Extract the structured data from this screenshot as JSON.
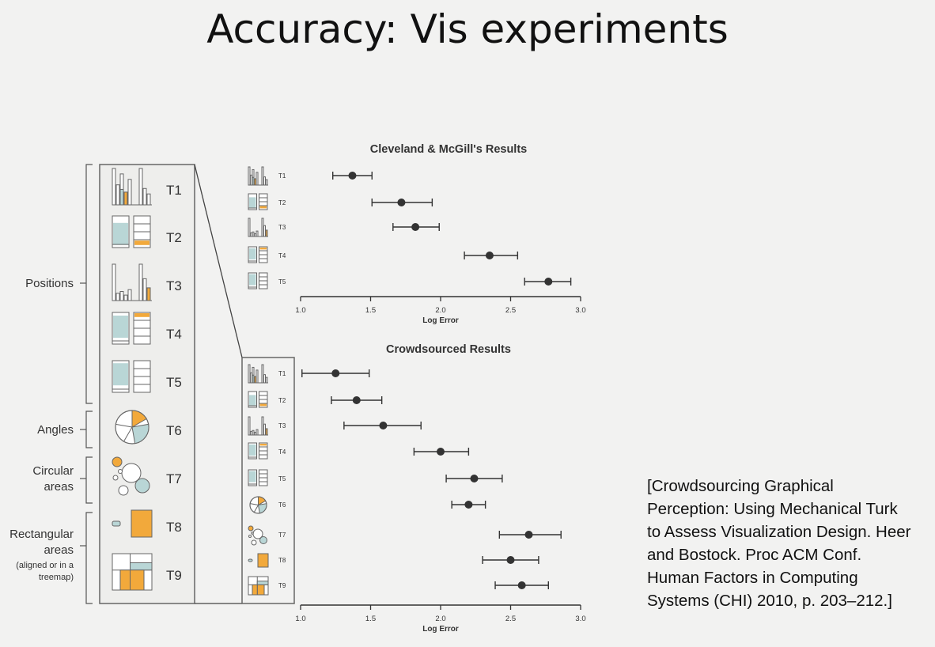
{
  "slide": {
    "title": "Accuracy: Vis experiments",
    "citation_lines": [
      "[Crowdsourcing Graphical",
      "Perception: Using Mechanical Turk",
      "to Assess Visualization Design. Heer",
      "and Bostock. Proc ACM Conf.",
      "Human Factors in Computing",
      "Systems (CHI) 2010, p. 203–212.]"
    ]
  },
  "tasks": {
    "groups": [
      {
        "label_lines": [
          "Positions"
        ],
        "tasks": [
          "T1",
          "T2",
          "T3",
          "T4",
          "T5"
        ]
      },
      {
        "label_lines": [
          "Angles"
        ],
        "tasks": [
          "T6"
        ]
      },
      {
        "label_lines": [
          "Circular",
          "areas"
        ],
        "tasks": [
          "T7"
        ]
      },
      {
        "label_lines": [
          "Rectangular",
          "areas",
          "(aligned or in a",
          "treemap)"
        ],
        "tasks": [
          "T8",
          "T9"
        ]
      }
    ],
    "labels": [
      "T1",
      "T2",
      "T3",
      "T4",
      "T5",
      "T6",
      "T7",
      "T8",
      "T9"
    ]
  },
  "colors": {
    "highlight": "#f2a93b",
    "teal": "#b9d6d6",
    "ink": "#333333",
    "frame": "#666666"
  },
  "chart_data": [
    {
      "type": "scatter",
      "title": "Cleveland & McGill's  Results",
      "xlabel": "Log Error",
      "xlim": [
        1.0,
        3.0
      ],
      "xticks": [
        "1.0",
        "1.5",
        "2.0",
        "2.5",
        "3.0"
      ],
      "categories": [
        "T1",
        "T2",
        "T3",
        "T4",
        "T5"
      ],
      "values": [
        1.37,
        1.72,
        1.82,
        2.35,
        2.77
      ],
      "ci_low": [
        1.23,
        1.51,
        1.66,
        2.17,
        2.6
      ],
      "ci_high": [
        1.51,
        1.94,
        1.99,
        2.55,
        2.93
      ]
    },
    {
      "type": "scatter",
      "title": "Crowdsourced Results",
      "xlabel": "Log Error",
      "xlim": [
        1.0,
        3.0
      ],
      "xticks": [
        "1.0",
        "1.5",
        "2.0",
        "2.5",
        "3.0"
      ],
      "categories": [
        "T1",
        "T2",
        "T3",
        "T4",
        "T5",
        "T6",
        "T7",
        "T8",
        "T9"
      ],
      "values": [
        1.25,
        1.4,
        1.59,
        2.0,
        2.24,
        2.2,
        2.63,
        2.5,
        2.58
      ],
      "ci_low": [
        1.01,
        1.22,
        1.31,
        1.81,
        2.04,
        2.08,
        2.42,
        2.3,
        2.39
      ],
      "ci_high": [
        1.49,
        1.58,
        1.86,
        2.2,
        2.44,
        2.32,
        2.86,
        2.7,
        2.77
      ]
    }
  ]
}
